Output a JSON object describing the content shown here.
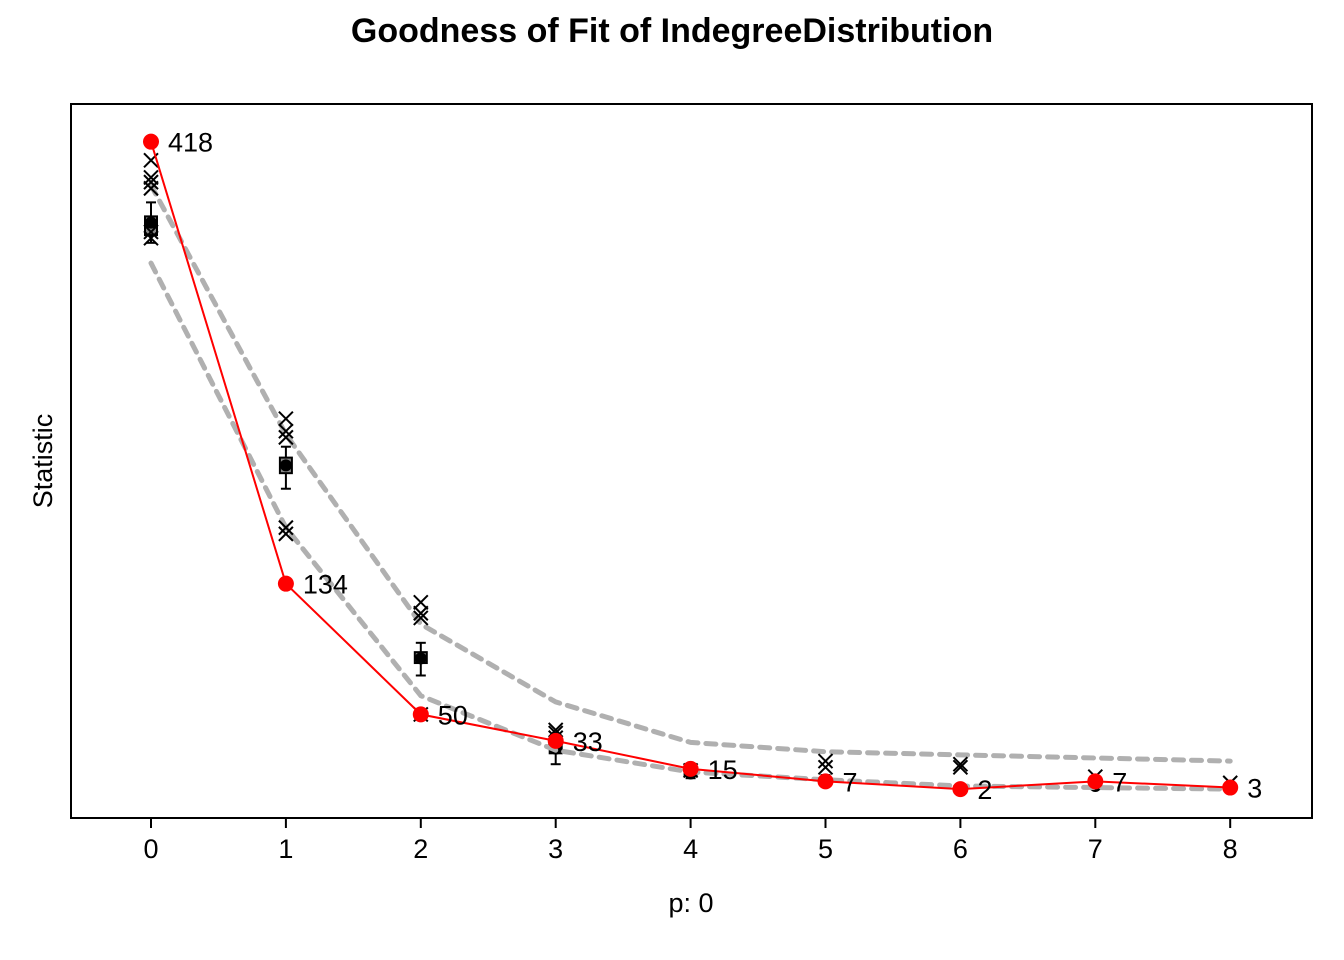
{
  "chart_data": {
    "type": "line",
    "title": "Goodness of Fit of IndegreeDistribution",
    "xlabel": "p: 0",
    "ylabel": "Statistic",
    "x": [
      0,
      1,
      2,
      3,
      4,
      5,
      6,
      7,
      8
    ],
    "ylim": [
      -5,
      430
    ],
    "grid": false,
    "observed": {
      "values": [
        418,
        134,
        50,
        33,
        15,
        7,
        2,
        7,
        3
      ],
      "labels": [
        "418",
        "134",
        "50",
        "33",
        "15",
        "7",
        "2",
        "7",
        "3"
      ],
      "color": "#ff0000"
    },
    "band_upper": {
      "values": [
        390,
        230,
        108,
        58,
        32,
        26,
        24,
        22,
        20
      ],
      "color": "#b0b0b0"
    },
    "band_lower": {
      "values": [
        340,
        170,
        62,
        27,
        13,
        8,
        4,
        3,
        2
      ],
      "color": "#b0b0b0"
    },
    "simulated_crosses": [
      [
        406,
        395,
        392,
        388,
        360,
        356
      ],
      [
        240,
        232,
        228,
        170,
        166
      ],
      [
        122,
        115,
        112,
        50
      ],
      [
        40,
        38,
        35
      ],
      [
        14
      ],
      [
        20,
        16
      ],
      [
        18,
        16
      ],
      [
        10
      ],
      [
        6
      ]
    ],
    "boxes": [
      {
        "median": 366,
        "q1": 358,
        "q3": 370,
        "min": 353,
        "max": 379
      },
      {
        "median": 210,
        "q1": 205,
        "q3": 215,
        "min": 195,
        "max": 222
      },
      {
        "median": 86,
        "q1": 83,
        "q3": 90,
        "min": 75,
        "max": 96
      },
      {
        "median": 28,
        "q1": 25,
        "q3": 32,
        "min": 18,
        "max": 36
      },
      {
        "median": 12,
        "q1": 11,
        "q3": 14,
        "min": 9,
        "max": 17
      },
      {
        "median": 7,
        "q1": 6,
        "q3": 9,
        "min": 4,
        "max": 11
      },
      {
        "median": 3,
        "q1": 2,
        "q3": 4,
        "min": 2,
        "max": 5
      },
      {
        "median": 4,
        "q1": 3,
        "q3": 5,
        "min": 2,
        "max": 6
      },
      {
        "median": 3,
        "q1": 2,
        "q3": 4,
        "min": 1,
        "max": 5
      }
    ]
  }
}
